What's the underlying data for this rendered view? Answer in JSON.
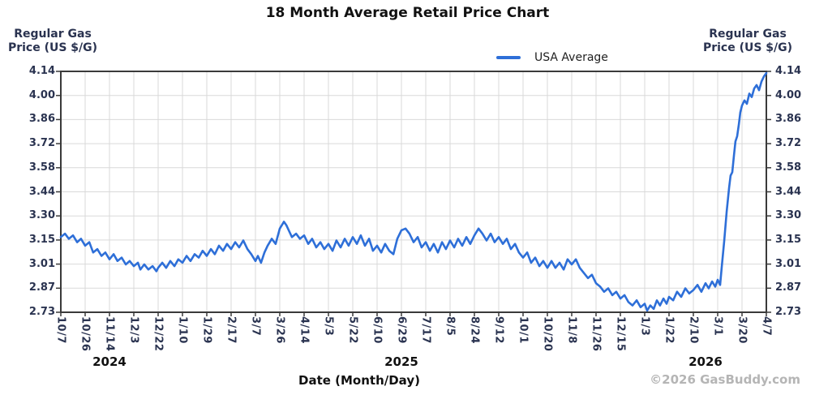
{
  "page": {
    "title": "18 Month Average Retail Price Chart",
    "footer": "©2026 GasBuddy.com"
  },
  "chart_data": {
    "type": "line",
    "title": "18 Month Average Retail Price Chart",
    "legend": {
      "position": "top",
      "entries": [
        {
          "label": "USA Average",
          "color": "#2e6fd8"
        }
      ]
    },
    "grid": true,
    "y_axis": {
      "title_line1": "Regular Gas",
      "title_line2": "Price (US $/G)",
      "sides": "both",
      "range": [
        2.73,
        4.14
      ],
      "tick_labels": [
        "4.14",
        "4.00",
        "3.86",
        "3.72",
        "3.58",
        "3.44",
        "3.30",
        "3.15",
        "3.01",
        "2.87",
        "2.73"
      ]
    },
    "x_axis": {
      "title": "Date (Month/Day)",
      "tick_labels": [
        "10/7",
        "10/26",
        "11/14",
        "12/3",
        "12/22",
        "1/10",
        "1/29",
        "2/17",
        "3/7",
        "3/26",
        "4/14",
        "5/3",
        "5/22",
        "6/10",
        "6/29",
        "7/17",
        "8/5",
        "8/24",
        "9/12",
        "10/1",
        "10/20",
        "11/8",
        "11/26",
        "12/15",
        "1/3",
        "1/22",
        "2/10",
        "3/1",
        "3/20",
        "4/7"
      ],
      "years": [
        {
          "label": "2024",
          "start_tick": 0,
          "end_tick": 4
        },
        {
          "label": "2025",
          "start_tick": 5,
          "end_tick": 23
        },
        {
          "label": "2026",
          "start_tick": 24,
          "end_tick": 29
        }
      ]
    },
    "series": [
      {
        "name": "USA Average",
        "color": "#2e6fd8",
        "x_unit": "tick_index",
        "points": [
          [
            0,
            3.17
          ],
          [
            0.17,
            3.19
          ],
          [
            0.33,
            3.16
          ],
          [
            0.5,
            3.18
          ],
          [
            0.67,
            3.14
          ],
          [
            0.83,
            3.16
          ],
          [
            1,
            3.12
          ],
          [
            1.17,
            3.14
          ],
          [
            1.33,
            3.08
          ],
          [
            1.5,
            3.1
          ],
          [
            1.67,
            3.06
          ],
          [
            1.83,
            3.08
          ],
          [
            2,
            3.04
          ],
          [
            2.17,
            3.07
          ],
          [
            2.33,
            3.03
          ],
          [
            2.5,
            3.05
          ],
          [
            2.67,
            3.01
          ],
          [
            2.83,
            3.03
          ],
          [
            3,
            3.0
          ],
          [
            3.17,
            3.02
          ],
          [
            3.27,
            2.98
          ],
          [
            3.43,
            3.01
          ],
          [
            3.6,
            2.98
          ],
          [
            3.77,
            3.0
          ],
          [
            3.93,
            2.97
          ],
          [
            4,
            2.99
          ],
          [
            4.17,
            3.02
          ],
          [
            4.33,
            2.99
          ],
          [
            4.5,
            3.03
          ],
          [
            4.67,
            3.0
          ],
          [
            4.83,
            3.04
          ],
          [
            5,
            3.02
          ],
          [
            5.17,
            3.06
          ],
          [
            5.33,
            3.03
          ],
          [
            5.5,
            3.07
          ],
          [
            5.67,
            3.05
          ],
          [
            5.83,
            3.09
          ],
          [
            6,
            3.06
          ],
          [
            6.17,
            3.1
          ],
          [
            6.33,
            3.07
          ],
          [
            6.5,
            3.12
          ],
          [
            6.67,
            3.09
          ],
          [
            6.83,
            3.13
          ],
          [
            7,
            3.1
          ],
          [
            7.17,
            3.14
          ],
          [
            7.33,
            3.11
          ],
          [
            7.5,
            3.15
          ],
          [
            7.67,
            3.1
          ],
          [
            7.83,
            3.07
          ],
          [
            8,
            3.03
          ],
          [
            8.1,
            3.06
          ],
          [
            8.23,
            3.02
          ],
          [
            8.37,
            3.08
          ],
          [
            8.5,
            3.12
          ],
          [
            8.67,
            3.16
          ],
          [
            8.83,
            3.13
          ],
          [
            9,
            3.22
          ],
          [
            9.17,
            3.26
          ],
          [
            9.27,
            3.24
          ],
          [
            9.4,
            3.2
          ],
          [
            9.5,
            3.17
          ],
          [
            9.67,
            3.19
          ],
          [
            9.83,
            3.16
          ],
          [
            10,
            3.18
          ],
          [
            10.17,
            3.13
          ],
          [
            10.33,
            3.16
          ],
          [
            10.5,
            3.11
          ],
          [
            10.67,
            3.14
          ],
          [
            10.83,
            3.1
          ],
          [
            11,
            3.13
          ],
          [
            11.17,
            3.09
          ],
          [
            11.33,
            3.15
          ],
          [
            11.5,
            3.11
          ],
          [
            11.67,
            3.16
          ],
          [
            11.83,
            3.12
          ],
          [
            12,
            3.17
          ],
          [
            12.17,
            3.13
          ],
          [
            12.33,
            3.18
          ],
          [
            12.5,
            3.12
          ],
          [
            12.67,
            3.16
          ],
          [
            12.83,
            3.09
          ],
          [
            13,
            3.12
          ],
          [
            13.17,
            3.08
          ],
          [
            13.33,
            3.13
          ],
          [
            13.5,
            3.09
          ],
          [
            13.67,
            3.07
          ],
          [
            13.83,
            3.16
          ],
          [
            14,
            3.21
          ],
          [
            14.17,
            3.22
          ],
          [
            14.33,
            3.19
          ],
          [
            14.5,
            3.14
          ],
          [
            14.67,
            3.17
          ],
          [
            14.83,
            3.11
          ],
          [
            15,
            3.14
          ],
          [
            15.17,
            3.09
          ],
          [
            15.33,
            3.13
          ],
          [
            15.5,
            3.08
          ],
          [
            15.67,
            3.14
          ],
          [
            15.83,
            3.1
          ],
          [
            16,
            3.15
          ],
          [
            16.17,
            3.11
          ],
          [
            16.33,
            3.16
          ],
          [
            16.5,
            3.12
          ],
          [
            16.67,
            3.17
          ],
          [
            16.83,
            3.13
          ],
          [
            17,
            3.18
          ],
          [
            17.17,
            3.22
          ],
          [
            17.33,
            3.19
          ],
          [
            17.5,
            3.15
          ],
          [
            17.67,
            3.19
          ],
          [
            17.83,
            3.14
          ],
          [
            18,
            3.17
          ],
          [
            18.17,
            3.13
          ],
          [
            18.33,
            3.16
          ],
          [
            18.5,
            3.1
          ],
          [
            18.67,
            3.13
          ],
          [
            18.83,
            3.08
          ],
          [
            19,
            3.05
          ],
          [
            19.17,
            3.08
          ],
          [
            19.33,
            3.02
          ],
          [
            19.5,
            3.05
          ],
          [
            19.67,
            3.0
          ],
          [
            19.83,
            3.03
          ],
          [
            20,
            2.99
          ],
          [
            20.17,
            3.03
          ],
          [
            20.33,
            2.99
          ],
          [
            20.5,
            3.02
          ],
          [
            20.67,
            2.98
          ],
          [
            20.83,
            3.04
          ],
          [
            21,
            3.01
          ],
          [
            21.17,
            3.04
          ],
          [
            21.33,
            2.99
          ],
          [
            21.5,
            2.96
          ],
          [
            21.67,
            2.93
          ],
          [
            21.83,
            2.95
          ],
          [
            22,
            2.9
          ],
          [
            22.17,
            2.88
          ],
          [
            22.33,
            2.85
          ],
          [
            22.5,
            2.87
          ],
          [
            22.67,
            2.83
          ],
          [
            22.83,
            2.85
          ],
          [
            23,
            2.81
          ],
          [
            23.17,
            2.83
          ],
          [
            23.33,
            2.79
          ],
          [
            23.5,
            2.77
          ],
          [
            23.67,
            2.8
          ],
          [
            23.83,
            2.76
          ],
          [
            24,
            2.78
          ],
          [
            24.1,
            2.74
          ],
          [
            24.23,
            2.77
          ],
          [
            24.37,
            2.75
          ],
          [
            24.5,
            2.8
          ],
          [
            24.63,
            2.77
          ],
          [
            24.77,
            2.81
          ],
          [
            24.9,
            2.78
          ],
          [
            25,
            2.82
          ],
          [
            25.17,
            2.8
          ],
          [
            25.33,
            2.85
          ],
          [
            25.5,
            2.82
          ],
          [
            25.67,
            2.87
          ],
          [
            25.83,
            2.84
          ],
          [
            26,
            2.86
          ],
          [
            26.17,
            2.89
          ],
          [
            26.33,
            2.85
          ],
          [
            26.5,
            2.9
          ],
          [
            26.63,
            2.87
          ],
          [
            26.77,
            2.91
          ],
          [
            26.9,
            2.88
          ],
          [
            27,
            2.92
          ],
          [
            27.1,
            2.89
          ],
          [
            27.17,
            3.0
          ],
          [
            27.27,
            3.15
          ],
          [
            27.37,
            3.32
          ],
          [
            27.47,
            3.46
          ],
          [
            27.53,
            3.53
          ],
          [
            27.6,
            3.55
          ],
          [
            27.67,
            3.65
          ],
          [
            27.73,
            3.73
          ],
          [
            27.8,
            3.76
          ],
          [
            27.87,
            3.83
          ],
          [
            27.93,
            3.9
          ],
          [
            28,
            3.94
          ],
          [
            28.1,
            3.97
          ],
          [
            28.2,
            3.95
          ],
          [
            28.3,
            4.01
          ],
          [
            28.4,
            3.99
          ],
          [
            28.5,
            4.04
          ],
          [
            28.6,
            4.06
          ],
          [
            28.7,
            4.03
          ],
          [
            28.8,
            4.08
          ],
          [
            28.9,
            4.11
          ],
          [
            29,
            4.13
          ]
        ]
      }
    ],
    "footer": "©2026 GasBuddy.com",
    "colors": {
      "line": "#2e6fd8",
      "grid": "#d9d9d9",
      "border": "#3a3a3a",
      "axis_text": "#2a3350",
      "title_text": "#111111",
      "muted_text": "#b5b5b5"
    }
  }
}
